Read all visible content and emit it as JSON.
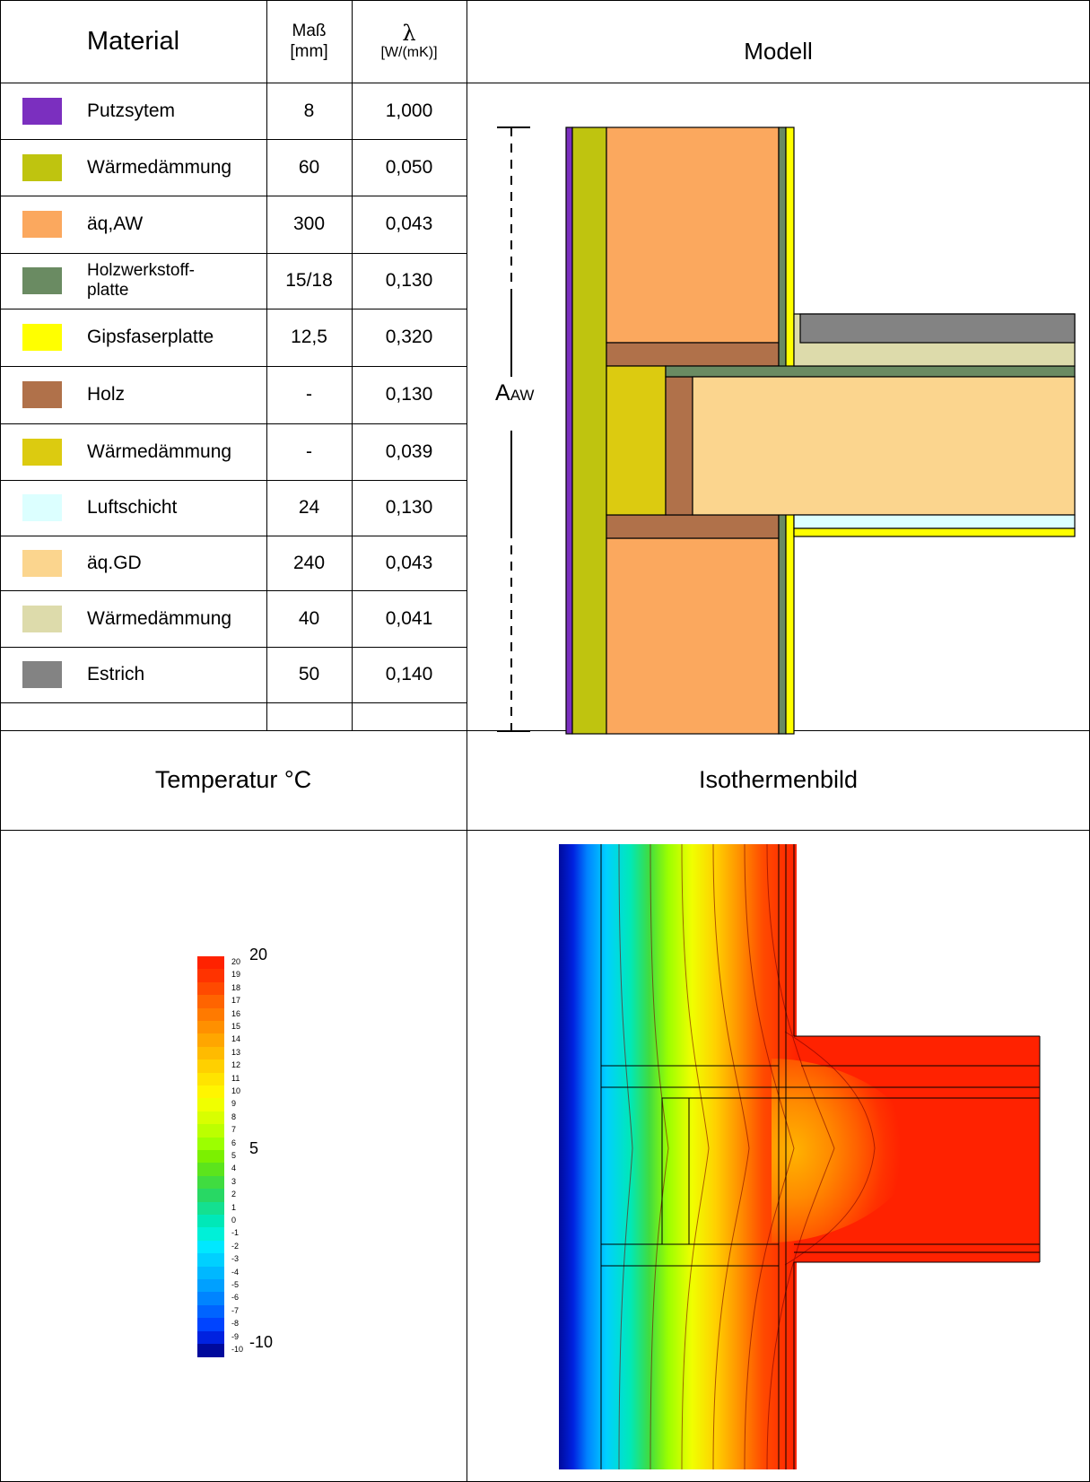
{
  "headers": {
    "material": "Material",
    "mass": "Maß",
    "mass_unit": "[mm]",
    "lambda": "λ",
    "lambda_unit": "[W/(mK)]",
    "model": "Modell",
    "temperature": "Temperatur °C",
    "isotherm": "Isothermenbild"
  },
  "materials": [
    {
      "name": "Putzsytem",
      "mass": "8",
      "lambda": "1,000",
      "color": "#7b2fbf"
    },
    {
      "name": "Wärmedämmung",
      "mass": "60",
      "lambda": "0,050",
      "color": "#bfc40f"
    },
    {
      "name": "äq,AW",
      "mass": "300",
      "lambda": "0,043",
      "color": "#fba85e"
    },
    {
      "name": "Holzwerkstoff-\nplatte",
      "mass": "15/18",
      "lambda": "0,130",
      "color": "#6a8b62"
    },
    {
      "name": "Gipsfaserplatte",
      "mass": "12,5",
      "lambda": "0,320",
      "color": "#ffff00"
    },
    {
      "name": "Holz",
      "mass": "-",
      "lambda": "0,130",
      "color": "#b0714a"
    },
    {
      "name": "Wärmedämmung",
      "mass": "-",
      "lambda": "0,039",
      "color": "#dccb10"
    },
    {
      "name": "Luftschicht",
      "mass": "24",
      "lambda": "0,130",
      "color": "#dcffff"
    },
    {
      "name": "äq.GD",
      "mass": "240",
      "lambda": "0,043",
      "color": "#fbd58e"
    },
    {
      "name": "Wärmedämmung",
      "mass": "40",
      "lambda": "0,041",
      "color": "#dddbab"
    },
    {
      "name": "Estrich",
      "mass": "50",
      "lambda": "0,140",
      "color": "#838383"
    }
  ],
  "model": {
    "dimension_label": "A",
    "dimension_subscript": "AW"
  },
  "legend": {
    "big_labels": [
      "20",
      "5",
      "-10"
    ],
    "small_labels": [
      "20",
      "19",
      "18",
      "17",
      "16",
      "15",
      "14",
      "13",
      "12",
      "11",
      "10",
      "9",
      "8",
      "7",
      "6",
      "5",
      "4",
      "3",
      "2",
      "1",
      "0",
      "-1",
      "-2",
      "-3",
      "-4",
      "-5",
      "-6",
      "-7",
      "-8",
      "-9",
      "-10"
    ],
    "colors": [
      "#ff2200",
      "#ff3300",
      "#ff4a00",
      "#ff6400",
      "#ff7a00",
      "#ff9000",
      "#ffa600",
      "#ffbb00",
      "#ffd000",
      "#ffe400",
      "#fff500",
      "#f0ff00",
      "#d8ff00",
      "#bcff00",
      "#9cff00",
      "#7cf000",
      "#5ce41c",
      "#40dc40",
      "#28d864",
      "#14e090",
      "#00e8b8",
      "#00f0d8",
      "#00e8ff",
      "#00d0ff",
      "#00b8ff",
      "#00a0ff",
      "#0084ff",
      "#0064ff",
      "#0044ff",
      "#0022e0",
      "#000a9c"
    ]
  }
}
